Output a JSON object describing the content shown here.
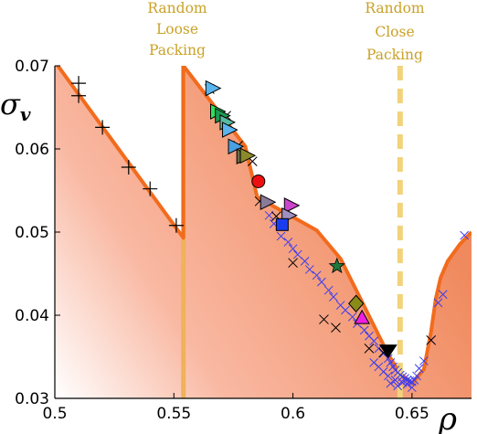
{
  "chart_data": {
    "type": "scatter",
    "title": "",
    "xlabel": "ρ",
    "ylabel": "σ",
    "ylabel_subscript": "v",
    "xlim": [
      0.5,
      0.675
    ],
    "ylim": [
      0.03,
      0.07
    ],
    "xticks": [
      0.5,
      0.55,
      0.6,
      0.65
    ],
    "xtick_labels": [
      "0.5",
      "0.55",
      "0.6",
      "0.65"
    ],
    "yticks": [
      0.03,
      0.04,
      0.05,
      0.06,
      0.07
    ],
    "ytick_labels": [
      "0.03",
      "0.04",
      "0.05",
      "0.06",
      "0.07"
    ],
    "grid": false,
    "annotations": [
      {
        "lines": [
          "Random",
          "Loose",
          "Packing"
        ],
        "x": 0.554
      },
      {
        "lines": [
          "Random",
          "Close",
          "Packing"
        ],
        "x": 0.645
      }
    ],
    "boundary_curve": {
      "color": "#f26b1d",
      "x": [
        0.5,
        0.554,
        0.554,
        0.58,
        0.585,
        0.61,
        0.62,
        0.64,
        0.645,
        0.65,
        0.655,
        0.658,
        0.66,
        0.662,
        0.665,
        0.67,
        0.675
      ],
      "y": [
        0.0705,
        0.0493,
        0.07,
        0.0603,
        0.0542,
        0.0502,
        0.0468,
        0.0353,
        0.033,
        0.0318,
        0.0335,
        0.038,
        0.042,
        0.0445,
        0.0465,
        0.0485,
        0.05
      ]
    },
    "rlp_line": {
      "x": 0.554,
      "color": "#f0b25a"
    },
    "rcp_line": {
      "x": 0.645,
      "color": "#f2d27a",
      "style": "dashed"
    },
    "plus_series": {
      "marker": "+",
      "color": "#000000",
      "points": [
        [
          0.51,
          0.0679
        ],
        [
          0.51,
          0.0664
        ],
        [
          0.52,
          0.0626
        ],
        [
          0.531,
          0.0578
        ],
        [
          0.54,
          0.0552
        ],
        [
          0.551,
          0.0508
        ]
      ]
    },
    "x_series_black": {
      "marker": "x",
      "color": "#000000",
      "points": [
        [
          0.565,
          0.0672
        ],
        [
          0.572,
          0.064
        ],
        [
          0.577,
          0.0604
        ],
        [
          0.583,
          0.0585
        ],
        [
          0.586,
          0.0537
        ],
        [
          0.593,
          0.0519
        ],
        [
          0.6,
          0.0463
        ],
        [
          0.613,
          0.0395
        ],
        [
          0.618,
          0.0385
        ],
        [
          0.632,
          0.036
        ],
        [
          0.638,
          0.0355
        ],
        [
          0.658,
          0.037
        ]
      ]
    },
    "x_series_blue": {
      "marker": "x",
      "color": "#3c3cf0",
      "points": [
        [
          0.59,
          0.052
        ],
        [
          0.592,
          0.051
        ],
        [
          0.595,
          0.0495
        ],
        [
          0.598,
          0.0488
        ],
        [
          0.6,
          0.048
        ],
        [
          0.602,
          0.0473
        ],
        [
          0.605,
          0.0465
        ],
        [
          0.607,
          0.0455
        ],
        [
          0.61,
          0.0448
        ],
        [
          0.612,
          0.044
        ],
        [
          0.615,
          0.043
        ],
        [
          0.617,
          0.0422
        ],
        [
          0.62,
          0.0412
        ],
        [
          0.622,
          0.0406
        ],
        [
          0.625,
          0.0398
        ],
        [
          0.627,
          0.039
        ],
        [
          0.63,
          0.0382
        ],
        [
          0.632,
          0.0375
        ],
        [
          0.634,
          0.0369
        ],
        [
          0.636,
          0.036
        ],
        [
          0.638,
          0.0354
        ],
        [
          0.64,
          0.0348
        ],
        [
          0.641,
          0.0343
        ],
        [
          0.642,
          0.0338
        ],
        [
          0.643,
          0.0334
        ],
        [
          0.644,
          0.0331
        ],
        [
          0.645,
          0.0328
        ],
        [
          0.646,
          0.0326
        ],
        [
          0.647,
          0.0324
        ],
        [
          0.648,
          0.0322
        ],
        [
          0.649,
          0.0321
        ],
        [
          0.65,
          0.032
        ],
        [
          0.651,
          0.0322
        ],
        [
          0.652,
          0.0327
        ],
        [
          0.653,
          0.0336
        ],
        [
          0.655,
          0.0345
        ],
        [
          0.658,
          0.037
        ],
        [
          0.661,
          0.0415
        ],
        [
          0.663,
          0.0425
        ],
        [
          0.672,
          0.0496
        ],
        [
          0.643,
          0.0322
        ],
        [
          0.646,
          0.0319
        ],
        [
          0.64,
          0.0327
        ],
        [
          0.638,
          0.0332
        ],
        [
          0.636,
          0.0338
        ],
        [
          0.634,
          0.0343
        ],
        [
          0.648,
          0.0317
        ],
        [
          0.644,
          0.0315
        ],
        [
          0.65,
          0.0313
        ],
        [
          0.641,
          0.0318
        ]
      ]
    },
    "highlighted": [
      {
        "marker": "triangle-right",
        "color": "#5ab4ee",
        "x": 0.5665,
        "y": 0.0673
      },
      {
        "marker": "triangle-right",
        "color": "#2ee05a",
        "x": 0.5685,
        "y": 0.0645
      },
      {
        "marker": "triangle-right",
        "color": "#1c9a50",
        "x": 0.5705,
        "y": 0.064
      },
      {
        "marker": "triangle-right",
        "color": "#59b8a0",
        "x": 0.5725,
        "y": 0.0632
      },
      {
        "marker": "triangle-right",
        "color": "#5ab4ee",
        "x": 0.5735,
        "y": 0.0623
      },
      {
        "marker": "triangle-right",
        "color": "#4aa0e0",
        "x": 0.576,
        "y": 0.0603
      },
      {
        "marker": "triangle-right",
        "color": "#6a6a4a",
        "x": 0.5795,
        "y": 0.0591
      },
      {
        "marker": "triangle-right",
        "color": "#8a8a2a",
        "x": 0.581,
        "y": 0.0592
      },
      {
        "marker": "circle",
        "color": "#ee1010",
        "x": 0.5855,
        "y": 0.0561
      },
      {
        "marker": "triangle-right",
        "color": "#8a7a9a",
        "x": 0.5895,
        "y": 0.0536
      },
      {
        "marker": "triangle-right",
        "color": "#cc44cc",
        "x": 0.5995,
        "y": 0.0532
      },
      {
        "marker": "triangle-right",
        "color": "#a090c0",
        "x": 0.5985,
        "y": 0.052
      },
      {
        "marker": "square",
        "color": "#1a3cf0",
        "x": 0.5955,
        "y": 0.0509
      },
      {
        "marker": "star",
        "color": "#1e7a3c",
        "x": 0.6185,
        "y": 0.0459
      },
      {
        "marker": "diamond",
        "color": "#8a8a1a",
        "x": 0.6265,
        "y": 0.0414
      },
      {
        "marker": "triangle-up",
        "color": "#ee20dd",
        "x": 0.629,
        "y": 0.0397
      },
      {
        "marker": "triangle-down",
        "color": "#000000",
        "x": 0.64,
        "y": 0.0358
      }
    ]
  }
}
